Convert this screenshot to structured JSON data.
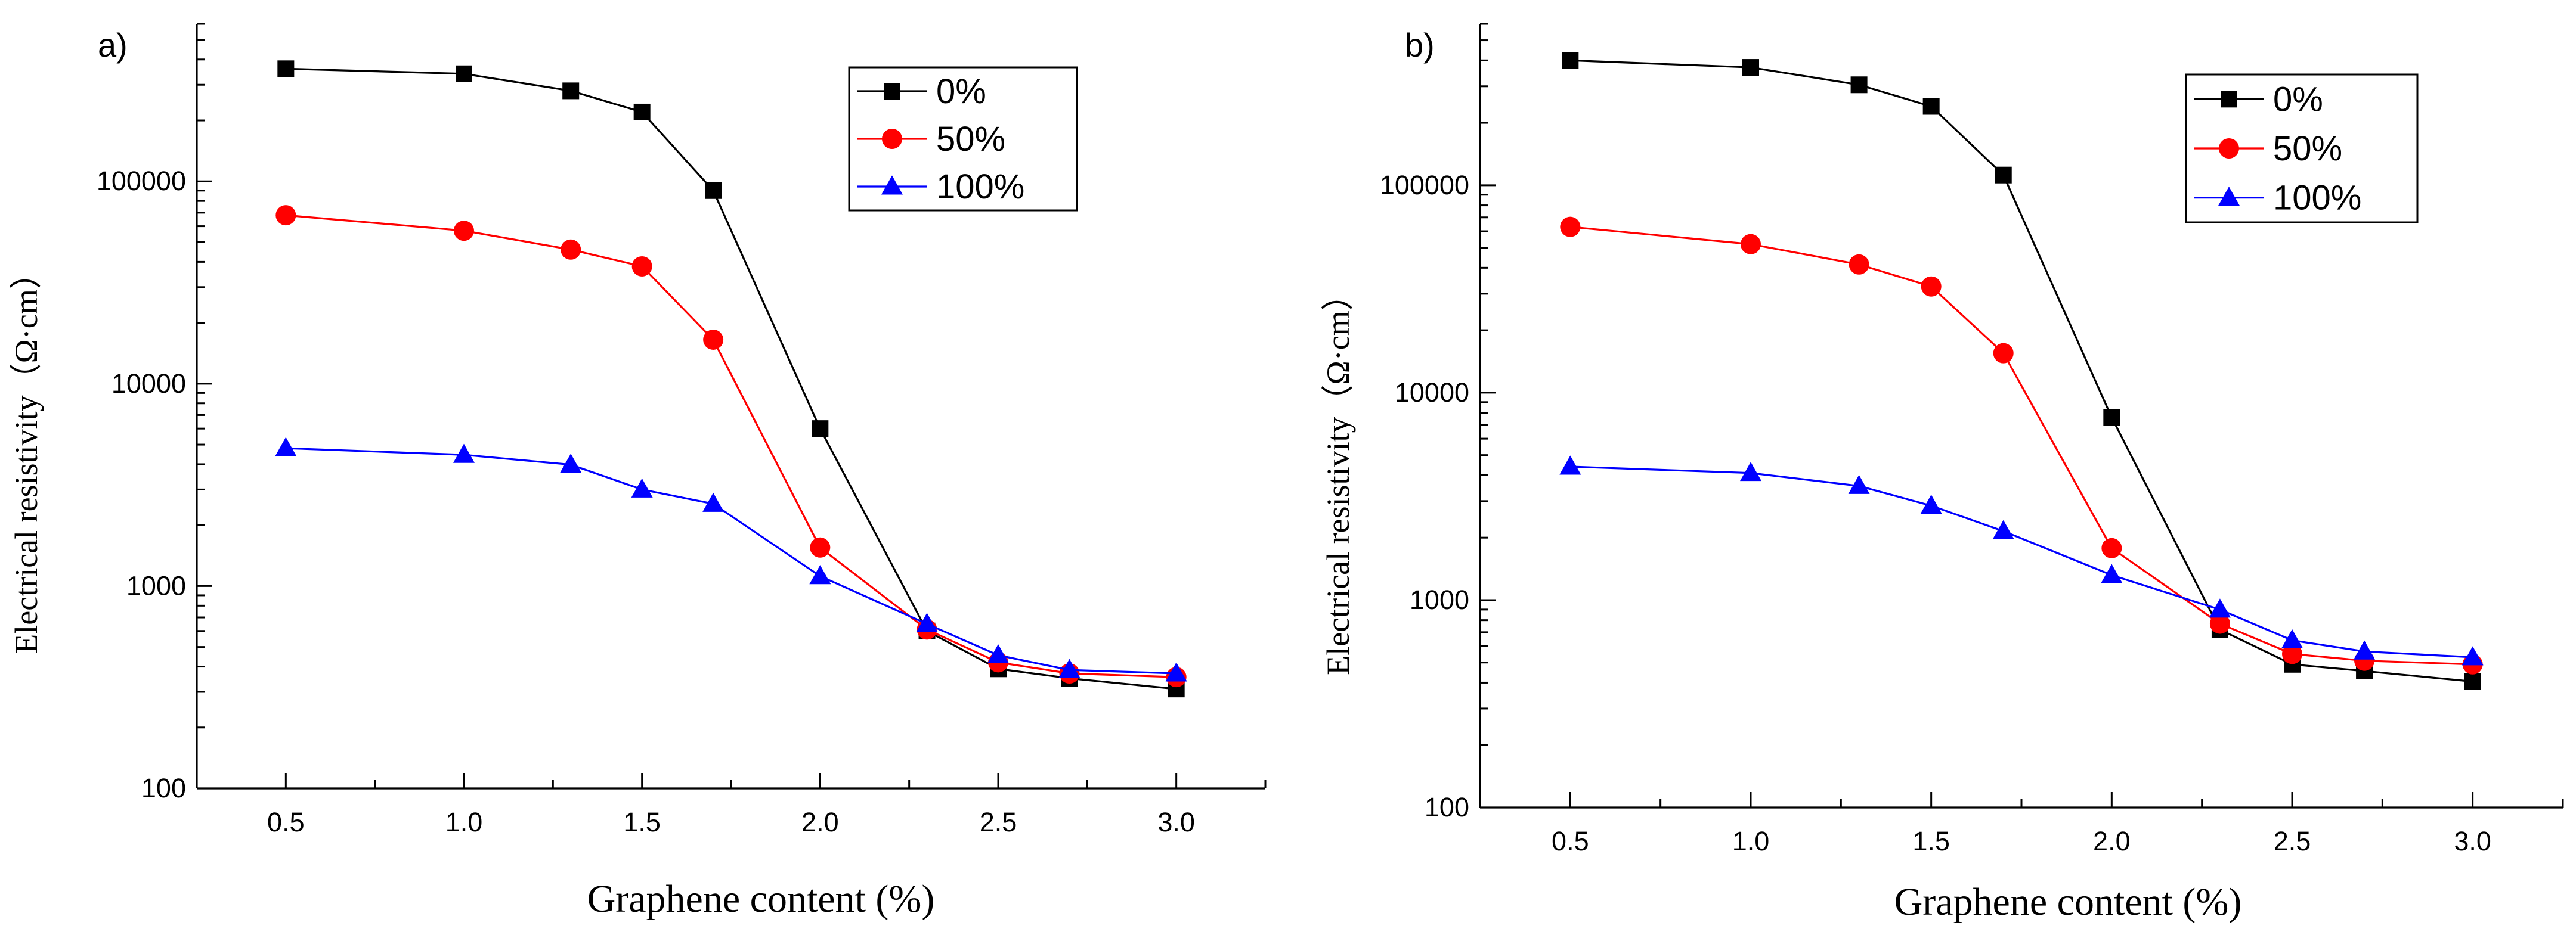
{
  "figure": {
    "background": "#ffffff"
  },
  "chart_data": [
    {
      "type": "line",
      "panel_label": "a)",
      "xlabel": "Graphene content (%)",
      "ylabel": "Electrical resistivity（Ω·cm）",
      "yscale": "log",
      "xlim": [
        0.25,
        3.25
      ],
      "ylim": [
        100,
        600000
      ],
      "x_ticks": [
        "0.5",
        "1.0",
        "1.5",
        "2.0",
        "2.5",
        "3.0"
      ],
      "y_ticks": [
        "100",
        "1000",
        "10000",
        "100000"
      ],
      "legend_position": "top-right",
      "x": [
        0.5,
        1.0,
        1.3,
        1.5,
        1.7,
        2.0,
        2.3,
        2.5,
        2.7,
        3.0
      ],
      "series": [
        {
          "name": "0%",
          "color": "#000000",
          "marker": "square",
          "values": [
            360000,
            340000,
            280000,
            220000,
            90000,
            6000,
            600,
            390,
            350,
            310
          ]
        },
        {
          "name": "50%",
          "color": "#ff0000",
          "marker": "circle",
          "values": [
            68000,
            57000,
            46000,
            38000,
            16500,
            1550,
            610,
            420,
            370,
            355
          ]
        },
        {
          "name": "100%",
          "color": "#0000ff",
          "marker": "triangle",
          "values": [
            4800,
            4450,
            3980,
            3000,
            2550,
            1120,
            650,
            455,
            385,
            370
          ]
        }
      ]
    },
    {
      "type": "line",
      "panel_label": "b)",
      "xlabel": "Graphene content (%)",
      "ylabel": "Electrical resistivity（Ω·cm）",
      "yscale": "log",
      "xlim": [
        0.25,
        3.25
      ],
      "ylim": [
        100,
        600000
      ],
      "x_ticks": [
        "0.5",
        "1.0",
        "1.5",
        "2.0",
        "2.5",
        "3.0"
      ],
      "y_ticks": [
        "100",
        "1000",
        "10000",
        "100000"
      ],
      "legend_position": "top-right",
      "x": [
        0.5,
        1.0,
        1.3,
        1.5,
        1.7,
        2.0,
        2.3,
        2.5,
        2.7,
        3.0
      ],
      "series": [
        {
          "name": "0%",
          "color": "#000000",
          "marker": "square",
          "values": [
            400000,
            370000,
            305000,
            240000,
            112000,
            7600,
            720,
            490,
            455,
            405
          ]
        },
        {
          "name": "50%",
          "color": "#ff0000",
          "marker": "circle",
          "values": [
            63000,
            52000,
            41500,
            32500,
            15500,
            1780,
            770,
            550,
            510,
            490
          ]
        },
        {
          "name": "100%",
          "color": "#0000ff",
          "marker": "triangle",
          "values": [
            4400,
            4100,
            3550,
            2850,
            2150,
            1320,
            900,
            640,
            565,
            530
          ]
        }
      ]
    }
  ]
}
